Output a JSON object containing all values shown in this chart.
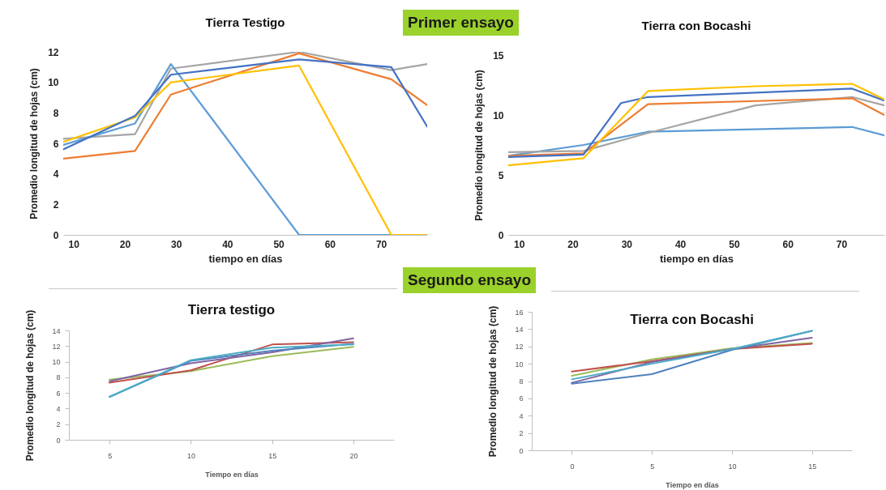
{
  "chart_data": [
    {
      "type": "line",
      "title": "Tierra Testigo",
      "xlabel": "tiempo en días",
      "ylabel": "Promedio longitud de hojas (cm)",
      "annotations": [
        "Primer ensayo"
      ],
      "x": [
        8,
        22,
        29,
        54,
        72,
        79
      ],
      "xlim": [
        8,
        79
      ],
      "xticks": [
        10,
        20,
        30,
        40,
        50,
        60,
        70
      ],
      "ylim": [
        0,
        12
      ],
      "yticks": [
        0,
        2,
        4,
        6,
        8,
        10,
        12
      ],
      "grid": false,
      "series": [
        {
          "color": "#a5a5a5",
          "values": [
            6.3,
            6.6,
            10.9,
            12.0,
            10.8,
            11.2
          ]
        },
        {
          "color": "#5b9bd5",
          "values": [
            5.9,
            7.3,
            11.2,
            0,
            0,
            null
          ]
        },
        {
          "color": "#ed7d31",
          "values": [
            5.0,
            5.5,
            9.2,
            11.9,
            10.2,
            8.5
          ]
        },
        {
          "color": "#ffc000",
          "values": [
            6.1,
            7.7,
            10.0,
            11.1,
            0,
            0
          ]
        },
        {
          "color": "#4472c4",
          "values": [
            5.6,
            7.8,
            10.5,
            11.5,
            11.0,
            7.1
          ]
        }
      ]
    },
    {
      "type": "line",
      "title": "Tierra con Bocashi",
      "xlabel": "tiempo en días",
      "ylabel": "Promedio longitud de hojas (cm)",
      "xlim": [
        8,
        78
      ],
      "xticks": [
        10,
        20,
        30,
        40,
        50,
        60,
        70
      ],
      "ylim": [
        0,
        15
      ],
      "yticks": [
        0,
        5,
        10,
        15
      ],
      "grid": false,
      "series": [
        {
          "color": "#5b9bd5",
          "x": [
            8,
            22,
            34,
            72,
            78
          ],
          "values": [
            6.6,
            7.5,
            8.6,
            9.0,
            8.3
          ]
        },
        {
          "color": "#a5a5a5",
          "x": [
            8,
            22,
            34,
            54,
            72,
            78
          ],
          "values": [
            6.9,
            7.0,
            8.5,
            10.8,
            11.5,
            10.8
          ]
        },
        {
          "color": "#ed7d31",
          "x": [
            8,
            22,
            34,
            72,
            78
          ],
          "values": [
            6.6,
            6.8,
            10.9,
            11.4,
            10.0
          ]
        },
        {
          "color": "#4472c4",
          "x": [
            8,
            22,
            29,
            34,
            72,
            78
          ],
          "values": [
            6.5,
            6.7,
            11.0,
            11.5,
            12.2,
            11.2
          ]
        },
        {
          "color": "#ffc000",
          "x": [
            8,
            22,
            34,
            54,
            72,
            78
          ],
          "values": [
            5.8,
            6.4,
            12.0,
            12.4,
            12.6,
            11.3
          ]
        }
      ]
    },
    {
      "type": "line",
      "title": "Tierra testigo",
      "xlabel": "Tiempo en días",
      "ylabel": "Promedio longitud de hojas (cm)",
      "annotations": [
        "Segundo ensayo"
      ],
      "x": [
        5,
        10,
        15,
        20
      ],
      "xlim": [
        2.5,
        22.5
      ],
      "xticks": [
        5,
        10,
        15,
        20
      ],
      "ylim": [
        0,
        14
      ],
      "yticks": [
        0,
        2,
        4,
        6,
        8,
        10,
        12,
        14
      ],
      "grid": false,
      "series": [
        {
          "color": "#9bbb59",
          "values": [
            7.7,
            8.8,
            10.7,
            11.9
          ]
        },
        {
          "color": "#c0504d",
          "values": [
            7.3,
            8.9,
            12.2,
            12.5
          ]
        },
        {
          "color": "#8064a2",
          "values": [
            7.5,
            9.8,
            11.2,
            13.0
          ]
        },
        {
          "color": "#4f81bd",
          "values": [
            5.5,
            10.1,
            11.4,
            12.3
          ]
        },
        {
          "color": "#4bacc6",
          "values": [
            5.5,
            10.2,
            11.8,
            12.2
          ]
        }
      ]
    },
    {
      "type": "line",
      "title": "Tierra con Bocashi",
      "xlabel": "Tiempo en días",
      "ylabel": "Promedio longitud de hojas (cm)",
      "x": [
        0,
        5,
        10,
        15
      ],
      "xlim": [
        -2.5,
        17.5
      ],
      "xticks": [
        0,
        5,
        10,
        15
      ],
      "ylim": [
        0,
        16
      ],
      "yticks": [
        0,
        2,
        4,
        6,
        8,
        10,
        12,
        14,
        16
      ],
      "grid": false,
      "series": [
        {
          "color": "#9bbb59",
          "values": [
            8.6,
            10.5,
            11.8,
            12.4
          ]
        },
        {
          "color": "#c0504d",
          "values": [
            9.1,
            10.3,
            11.7,
            12.3
          ]
        },
        {
          "color": "#8064a2",
          "values": [
            7.8,
            10.2,
            11.7,
            13.0
          ]
        },
        {
          "color": "#4f81bd",
          "values": [
            7.7,
            8.8,
            11.6,
            13.8
          ]
        },
        {
          "color": "#4bacc6",
          "values": [
            8.2,
            10.0,
            11.7,
            13.8
          ]
        }
      ]
    }
  ]
}
